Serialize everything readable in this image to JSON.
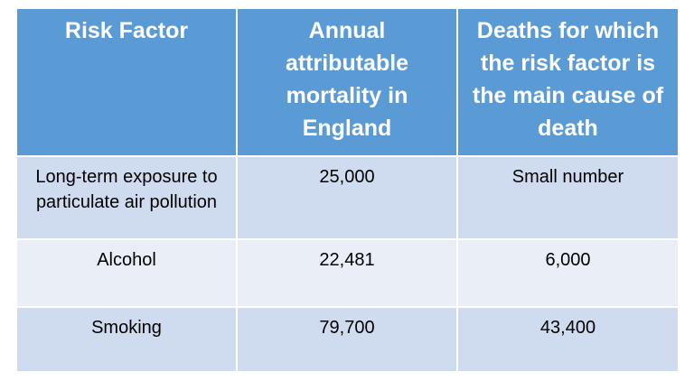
{
  "table": {
    "headers": [
      "Risk Factor",
      "Annual attributable mortality in England",
      "Deaths for which the risk factor is the main cause of death"
    ],
    "rows": [
      [
        "Long-term exposure to particulate air pollution",
        "25,000",
        "Small number"
      ],
      [
        "Alcohol",
        "22,481",
        "6,000"
      ],
      [
        "Smoking",
        "79,700",
        "43,400"
      ]
    ]
  },
  "colors": {
    "header": "#5b9bd5",
    "row_dark": "#cfdbee",
    "row_light": "#e9eef7"
  }
}
